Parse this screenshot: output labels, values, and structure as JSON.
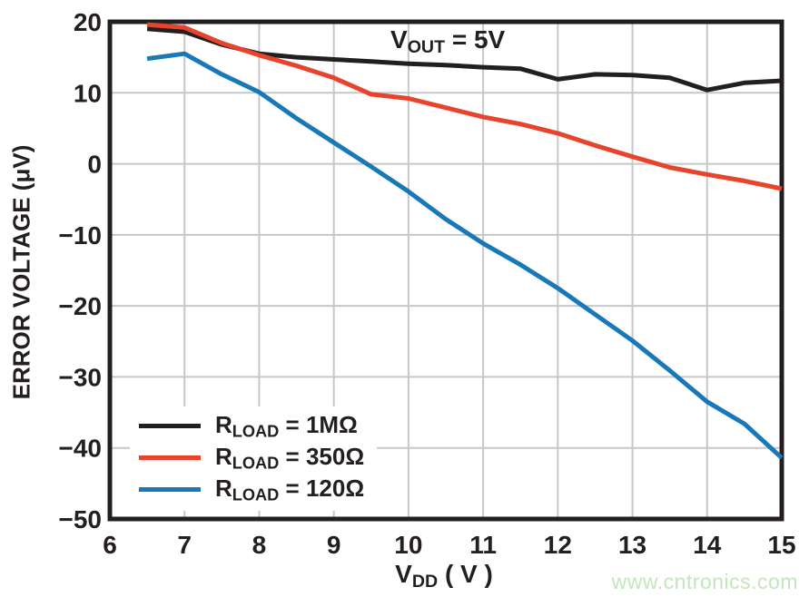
{
  "figure": {
    "background": "#FFFFFF"
  },
  "watermark": {
    "text": "www.cntronics.com",
    "color": "#C3E6BC"
  },
  "chart_data": {
    "type": "line",
    "annotation": {
      "prefix": "V",
      "sub": "OUT",
      "suffix": " = 5V"
    },
    "xlabel": {
      "prefix": "V",
      "sub": "DD",
      "suffix": " ( V )"
    },
    "ylabel": "ERROR VOLTAGE (μV)",
    "xlim": [
      6,
      15
    ],
    "ylim": [
      -50,
      20
    ],
    "x_ticks": [
      6,
      7,
      8,
      9,
      10,
      11,
      12,
      13,
      14,
      15
    ],
    "y_ticks": [
      20,
      10,
      0,
      -10,
      -20,
      -30,
      -40,
      -50
    ],
    "grid": true,
    "grid_color": "#C6C7C8",
    "axis_color": "#231F20",
    "legend_position": "lower-left",
    "x": [
      6.5,
      7,
      7.5,
      8,
      8.5,
      9,
      9.5,
      10,
      10.5,
      11,
      11.5,
      12,
      12.5,
      13,
      13.5,
      14,
      14.5,
      15
    ],
    "series": [
      {
        "label": {
          "prefix": "R",
          "sub": "LOAD",
          "suffix": " = 1MΩ"
        },
        "color": "#231F20",
        "values": [
          19.0,
          18.6,
          16.8,
          15.5,
          15.0,
          14.7,
          14.4,
          14.1,
          13.9,
          13.6,
          13.4,
          11.9,
          12.6,
          12.5,
          12.1,
          10.4,
          11.4,
          11.7
        ]
      },
      {
        "label": {
          "prefix": "R",
          "sub": "LOAD",
          "suffix": " = 350Ω"
        },
        "color": "#E8432B",
        "values": [
          19.6,
          19.2,
          17.0,
          15.3,
          13.8,
          12.1,
          9.8,
          9.2,
          7.9,
          6.6,
          5.6,
          4.3,
          2.6,
          1.0,
          -0.5,
          -1.5,
          -2.4,
          -3.5
        ]
      },
      {
        "label": {
          "prefix": "R",
          "sub": "LOAD",
          "suffix": " = 120Ω"
        },
        "color": "#1878B8",
        "values": [
          14.8,
          15.5,
          12.6,
          10.1,
          6.4,
          3.0,
          -0.4,
          -3.9,
          -7.8,
          -11.2,
          -14.2,
          -17.5,
          -21.2,
          -24.9,
          -29.1,
          -33.5,
          -36.6,
          -41.4
        ]
      }
    ]
  }
}
